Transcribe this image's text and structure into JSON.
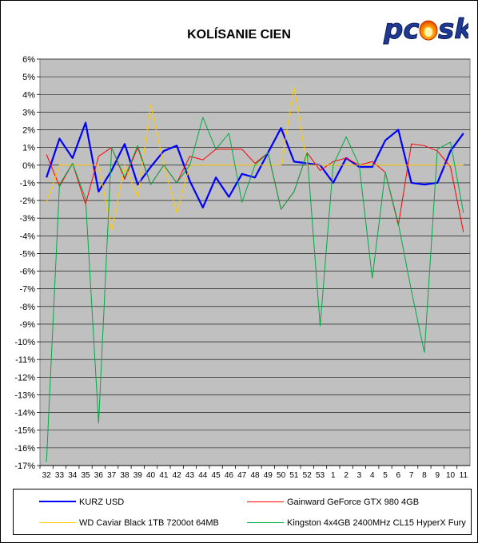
{
  "chart_data": {
    "type": "line",
    "title": "KOLÍSANIE CIEN",
    "xlabel": "",
    "ylabel": "",
    "ylim": [
      -17,
      6
    ],
    "ytick_labels": [
      "6%",
      "5%",
      "4%",
      "3%",
      "2%",
      "1%",
      "0%",
      "-1%",
      "-2%",
      "-3%",
      "-4%",
      "-5%",
      "-6%",
      "-7%",
      "-8%",
      "-9%",
      "-10%",
      "-11%",
      "-12%",
      "-13%",
      "-14%",
      "-15%",
      "-16%",
      "-17%"
    ],
    "categories": [
      "32",
      "33",
      "34",
      "35",
      "36",
      "37",
      "38",
      "39",
      "40",
      "41",
      "42",
      "43",
      "44",
      "45",
      "46",
      "47",
      "48",
      "49",
      "50",
      "51",
      "52",
      "53",
      "1",
      "2",
      "3",
      "4",
      "5",
      "6",
      "7",
      "8",
      "9",
      "10",
      "11"
    ],
    "grid": true,
    "legend_position": "bottom",
    "series": [
      {
        "name": "KURZ USD",
        "color": "#0000ff",
        "width": 2.2,
        "values": [
          -0.7,
          1.5,
          0.4,
          2.4,
          -1.5,
          -0.3,
          1.2,
          -1.1,
          -0.1,
          0.8,
          1.1,
          -0.9,
          -2.4,
          -0.7,
          -1.8,
          -0.5,
          -0.7,
          0.7,
          2.1,
          0.2,
          0.1,
          0.0,
          -1.0,
          0.4,
          -0.1,
          -0.1,
          1.4,
          2.0,
          -1.0,
          -1.1,
          -1.0,
          0.8,
          1.8
        ]
      },
      {
        "name": "Gainward GeForce GTX 980 4GB",
        "color": "#ff0000",
        "width": 1,
        "values": [
          0.6,
          -1.2,
          0.1,
          -2.2,
          0.5,
          1.0,
          -0.8,
          1.0,
          -1.1,
          0.0,
          -1.0,
          0.5,
          0.3,
          0.9,
          0.9,
          0.9,
          0.1,
          0.7,
          -2.5,
          -1.5,
          0.7,
          -0.3,
          0.2,
          0.4,
          0.0,
          0.2,
          -0.4,
          -3.4,
          1.2,
          1.1,
          0.8,
          -0.1,
          -3.8
        ]
      },
      {
        "name": "WD Caviar Black 1TB 7200ot 64MB",
        "color": "#ffcc00",
        "width": 1,
        "values": [
          -2.1,
          0.0,
          0.0,
          0.0,
          0.0,
          -3.7,
          0.0,
          -1.8,
          3.4,
          0.0,
          -2.7,
          0.0,
          0.0,
          0.0,
          0.0,
          0.0,
          0.0,
          0.0,
          0.0,
          4.4,
          0.0,
          0.0,
          0.0,
          0.0,
          0.0,
          0.0,
          0.0,
          0.0,
          0.0,
          0.0,
          0.0,
          0.0,
          0.0
        ]
      },
      {
        "name": "Kingston 4x4GB 2400MHz CL15 HyperX Fury",
        "color": "#00aa44",
        "width": 1,
        "values": [
          -16.8,
          -1.1,
          0.1,
          -1.9,
          -14.6,
          1.0,
          -0.7,
          1.1,
          -1.1,
          0.0,
          -1.0,
          0.0,
          2.7,
          0.9,
          1.8,
          -2.1,
          0.0,
          0.7,
          -2.5,
          -1.5,
          0.7,
          -9.1,
          0.0,
          1.6,
          0.0,
          -6.4,
          -0.4,
          -3.3,
          -7.1,
          -10.6,
          0.9,
          1.3,
          -2.7
        ]
      }
    ]
  },
  "logo": {
    "text_dark": "pc",
    "text_flame": "o",
    "text_tail": "sk"
  }
}
